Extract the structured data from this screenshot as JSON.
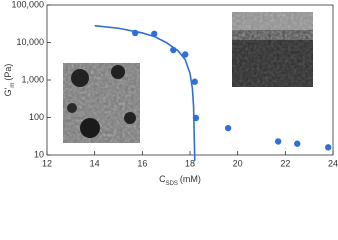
{
  "chart_data": {
    "type": "scatter",
    "log_y": true,
    "x_label": {
      "main": "C",
      "sub": "SDS",
      "unit": "(mM)"
    },
    "y_label": {
      "main": "G'",
      "sub": "m",
      "unit": "(Pa)"
    },
    "xlim": [
      12,
      24
    ],
    "xticks": [
      12,
      14,
      16,
      18,
      20,
      22,
      24
    ],
    "ylim": [
      10,
      100000
    ],
    "yticks": [
      10,
      100,
      {
        "value": 1000,
        "label": "1,000"
      },
      {
        "value": 10000,
        "label": "10,000"
      },
      {
        "value": 100000,
        "label": "100,000"
      }
    ],
    "series": [
      {
        "color": "#2f6fd6",
        "x": [
          15.7,
          16.5,
          17.3,
          17.8,
          18.2,
          18.25,
          19.6,
          21.7,
          22.5,
          23.8
        ],
        "values": [
          18000,
          17000,
          6300,
          4800,
          900,
          97,
          52,
          23,
          20,
          16
        ]
      },
      {
        "type": "line",
        "color": "#2f6fd6",
        "x": [
          14,
          15,
          16,
          16.5,
          17,
          17.5,
          17.8,
          18,
          18.1,
          18.15,
          18.2
        ],
        "values": [
          28000,
          24000,
          18000,
          14500,
          10000,
          6000,
          3500,
          1500,
          600,
          200,
          7
        ]
      }
    ]
  }
}
